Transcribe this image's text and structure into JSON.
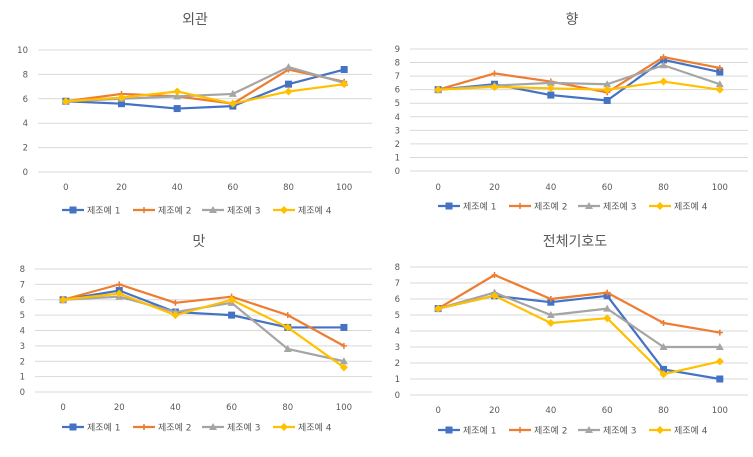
{
  "chart_data": [
    {
      "type": "line",
      "title": "외관",
      "xlabel": "",
      "ylabel": "",
      "categories": [
        "0",
        "20",
        "40",
        "60",
        "80",
        "100"
      ],
      "ylim": [
        0,
        10
      ],
      "yticks": [
        0,
        2,
        4,
        6,
        8,
        10
      ],
      "grid": true,
      "legend": "bottom",
      "series": [
        {
          "name": "제조예 1",
          "color": "#4472C4",
          "marker": "square",
          "values": [
            5.8,
            5.6,
            5.2,
            5.4,
            7.2,
            8.4
          ]
        },
        {
          "name": "제조예 2",
          "color": "#ED7D31",
          "marker": "plus",
          "values": [
            5.8,
            6.4,
            6.2,
            5.6,
            8.4,
            7.4
          ]
        },
        {
          "name": "제조예 3",
          "color": "#A5A5A5",
          "marker": "triangle",
          "values": [
            5.8,
            6.0,
            6.2,
            6.4,
            8.6,
            7.3
          ]
        },
        {
          "name": "제조예 4",
          "color": "#FFC000",
          "marker": "diamond",
          "values": [
            5.8,
            6.1,
            6.6,
            5.6,
            6.6,
            7.2
          ]
        }
      ]
    },
    {
      "type": "line",
      "title": "향",
      "xlabel": "",
      "ylabel": "",
      "categories": [
        "0",
        "20",
        "40",
        "60",
        "80",
        "100"
      ],
      "ylim": [
        0,
        9
      ],
      "yticks": [
        0,
        1,
        2,
        3,
        4,
        5,
        6,
        7,
        8,
        9
      ],
      "grid": true,
      "legend": "bottom",
      "series": [
        {
          "name": "제조예 1",
          "color": "#4472C4",
          "marker": "square",
          "values": [
            6.0,
            6.4,
            5.6,
            5.2,
            8.2,
            7.3
          ]
        },
        {
          "name": "제조예 2",
          "color": "#ED7D31",
          "marker": "plus",
          "values": [
            6.0,
            7.2,
            6.6,
            5.8,
            8.4,
            7.6
          ]
        },
        {
          "name": "제조예 3",
          "color": "#A5A5A5",
          "marker": "triangle",
          "values": [
            6.0,
            6.3,
            6.5,
            6.4,
            7.8,
            6.4
          ]
        },
        {
          "name": "제조예 4",
          "color": "#FFC000",
          "marker": "diamond",
          "values": [
            6.0,
            6.2,
            6.1,
            6.0,
            6.6,
            6.0
          ]
        }
      ]
    },
    {
      "type": "line",
      "title": "맛",
      "xlabel": "",
      "ylabel": "",
      "categories": [
        "0",
        "20",
        "40",
        "60",
        "80",
        "100"
      ],
      "ylim": [
        0,
        8
      ],
      "yticks": [
        0,
        1,
        2,
        3,
        4,
        5,
        6,
        7,
        8
      ],
      "grid": true,
      "legend": "bottom",
      "series": [
        {
          "name": "제조예 1",
          "color": "#4472C4",
          "marker": "square",
          "values": [
            6.0,
            6.6,
            5.2,
            5.0,
            4.2,
            4.2
          ]
        },
        {
          "name": "제조예 2",
          "color": "#ED7D31",
          "marker": "plus",
          "values": [
            6.0,
            7.0,
            5.8,
            6.2,
            5.0,
            3.0
          ]
        },
        {
          "name": "제조예 3",
          "color": "#A5A5A5",
          "marker": "triangle",
          "values": [
            6.0,
            6.2,
            5.2,
            5.8,
            2.8,
            2.0
          ]
        },
        {
          "name": "제조예 4",
          "color": "#FFC000",
          "marker": "diamond",
          "values": [
            6.0,
            6.4,
            5.0,
            6.0,
            4.2,
            1.6
          ]
        }
      ]
    },
    {
      "type": "line",
      "title": "전체기호도",
      "xlabel": "",
      "ylabel": "",
      "categories": [
        "0",
        "20",
        "40",
        "60",
        "80",
        "100"
      ],
      "ylim": [
        0,
        8
      ],
      "yticks": [
        0,
        1,
        2,
        3,
        4,
        5,
        6,
        7,
        8
      ],
      "grid": true,
      "legend": "bottom",
      "series": [
        {
          "name": "제조예 1",
          "color": "#4472C4",
          "marker": "square",
          "values": [
            5.4,
            6.2,
            5.8,
            6.2,
            1.6,
            1.0
          ]
        },
        {
          "name": "제조예 2",
          "color": "#ED7D31",
          "marker": "plus",
          "values": [
            5.4,
            7.5,
            6.0,
            6.4,
            4.5,
            3.9
          ]
        },
        {
          "name": "제조예 3",
          "color": "#A5A5A5",
          "marker": "triangle",
          "values": [
            5.4,
            6.4,
            5.0,
            5.4,
            3.0,
            3.0
          ]
        },
        {
          "name": "제조예 4",
          "color": "#FFC000",
          "marker": "diamond",
          "values": [
            5.4,
            6.2,
            4.5,
            4.8,
            1.3,
            2.1
          ]
        }
      ]
    }
  ]
}
